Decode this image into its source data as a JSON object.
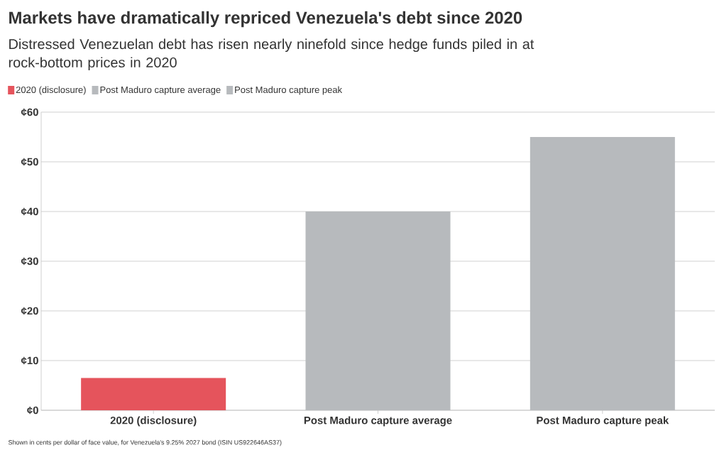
{
  "chart_data": {
    "type": "bar",
    "title": "Markets have dramatically repriced Venezuela's debt since 2020",
    "subtitle": "Distressed Venezuelan debt has risen nearly ninefold since hedge funds piled in at rock-bottom prices in 2020",
    "categories": [
      "2020 (disclosure)",
      "Post Maduro capture average",
      "Post Maduro capture peak"
    ],
    "series": [
      {
        "name": "2020 (disclosure)",
        "color": "#e5545c",
        "values": [
          6.5,
          null,
          null
        ]
      },
      {
        "name": "Post Maduro capture average",
        "color": "#b7babd",
        "values": [
          null,
          40,
          null
        ]
      },
      {
        "name": "Post Maduro capture peak",
        "color": "#b7babd",
        "values": [
          null,
          null,
          55
        ]
      }
    ],
    "ylim": [
      0,
      60
    ],
    "yticks": [
      {
        "value": 0,
        "label": "¢0"
      },
      {
        "value": 10,
        "label": "¢10"
      },
      {
        "value": 20,
        "label": "¢20"
      },
      {
        "value": 30,
        "label": "¢30"
      },
      {
        "value": 40,
        "label": "¢40"
      },
      {
        "value": 50,
        "label": "¢50"
      },
      {
        "value": 60,
        "label": "¢60"
      }
    ],
    "grid": "y",
    "legend": "top left",
    "annotations": [
      "Shown in cents per dollar of face value, for Venezuela's 9.25% 2027 bond (ISIN US922646AS37)"
    ]
  }
}
